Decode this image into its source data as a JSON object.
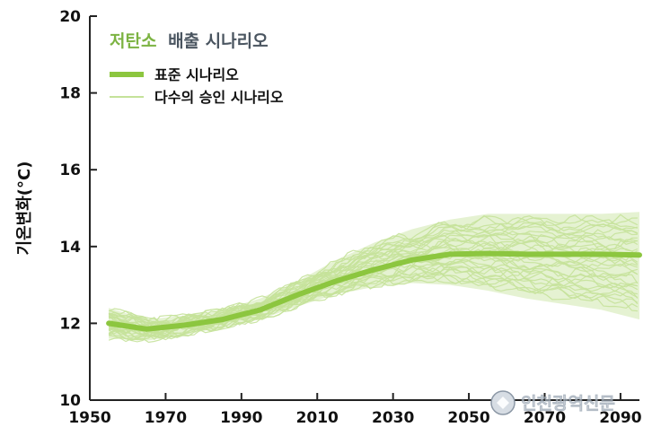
{
  "chart_data": {
    "type": "line",
    "title_parts": [
      {
        "text": "저탄소",
        "color": "#7cb342"
      },
      {
        "text": "배출 시나리오",
        "color": "#4a5560"
      }
    ],
    "xlabel": "",
    "ylabel": "기온변화(°C)",
    "xlim": [
      1950,
      2095
    ],
    "ylim": [
      10,
      20
    ],
    "x_ticks": [
      "1950",
      "1970",
      "1990",
      "2010",
      "2030",
      "2050",
      "2070",
      "2090"
    ],
    "y_ticks": [
      "10",
      "12",
      "14",
      "16",
      "18",
      "20"
    ],
    "grid": false,
    "legend_position": "top-left",
    "colors": {
      "standard": "#8cc63f",
      "approved": "#c5e29a",
      "band": "#cfe7ad",
      "axis": "#222222"
    },
    "series": [
      {
        "name": "표준 시나리오",
        "x": [
          1955,
          1965,
          1975,
          1985,
          1995,
          2005,
          2015,
          2025,
          2035,
          2045,
          2055,
          2065,
          2075,
          2085,
          2095
        ],
        "values": [
          12.0,
          11.85,
          11.95,
          12.1,
          12.35,
          12.75,
          13.1,
          13.4,
          13.65,
          13.8,
          13.82,
          13.8,
          13.8,
          13.8,
          13.78
        ]
      },
      {
        "name": "다수의 승인 시나리오",
        "x": [
          1955,
          1965,
          1975,
          1985,
          1995,
          2005,
          2015,
          2025,
          2035,
          2045,
          2055,
          2065,
          2075,
          2085,
          2095
        ],
        "values_min": [
          11.6,
          11.55,
          11.7,
          11.9,
          12.1,
          12.45,
          12.75,
          12.95,
          13.05,
          13.0,
          12.85,
          12.65,
          12.5,
          12.35,
          12.1
        ],
        "values_max": [
          12.4,
          12.1,
          12.2,
          12.35,
          12.65,
          13.1,
          13.65,
          14.1,
          14.45,
          14.7,
          14.85,
          14.85,
          14.85,
          14.85,
          14.9
        ]
      }
    ]
  },
  "watermark": {
    "text": "인천광역신문"
  }
}
